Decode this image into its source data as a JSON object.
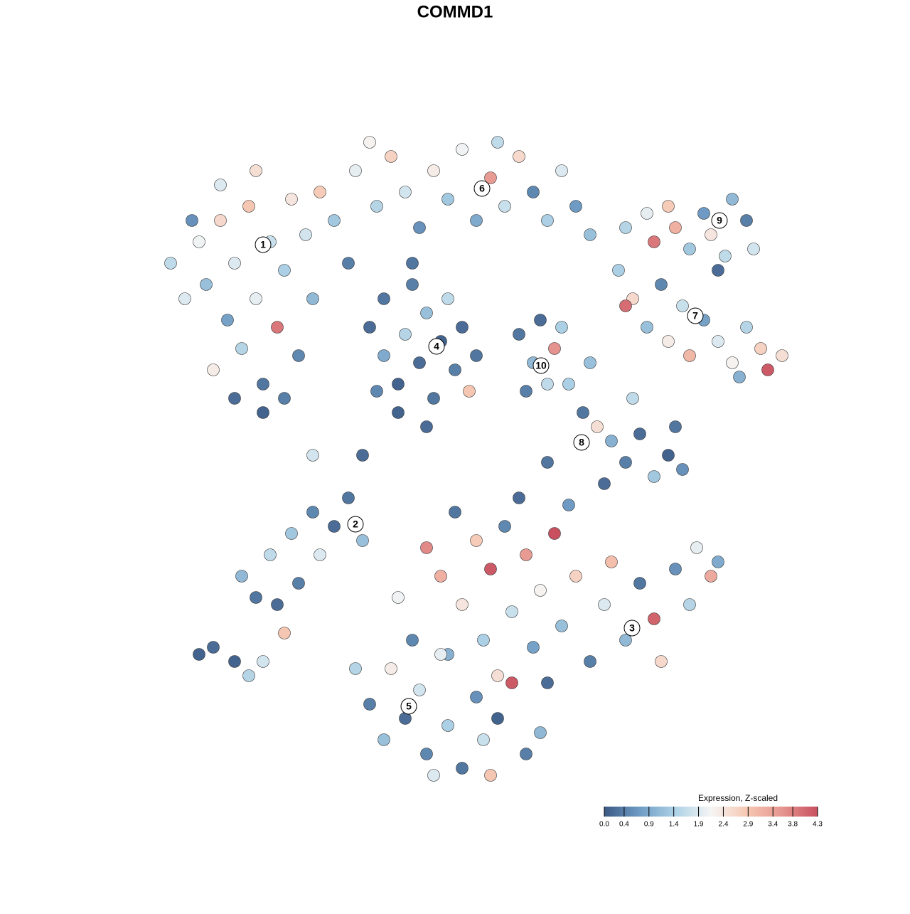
{
  "chart_data": {
    "type": "scatter",
    "title": "COMMD1",
    "xlim": [
      -45,
      50
    ],
    "ylim": [
      -48,
      48
    ],
    "x": [
      -40,
      -38,
      -36,
      -35,
      -33,
      -32,
      -31,
      -30,
      -29,
      -28,
      -27,
      -26,
      -25,
      -24,
      -23,
      -22,
      -21,
      -20,
      -31,
      -27,
      -34,
      -24,
      -37,
      -19,
      -17,
      -15,
      -33,
      -28,
      -14,
      -11,
      -9,
      -7,
      -5,
      -3,
      -1,
      1,
      3,
      5,
      7,
      9,
      11,
      13,
      15,
      17,
      19,
      -12,
      6,
      -6,
      -12,
      -10,
      -10,
      -8,
      -7,
      -6,
      -5,
      -4,
      -3,
      -2,
      -1,
      0,
      1,
      2,
      -8,
      -11,
      3,
      -4,
      9,
      11,
      12,
      13,
      14,
      10,
      15,
      24,
      27,
      28,
      30,
      31,
      33,
      35,
      36,
      38,
      39,
      41,
      42,
      37,
      23,
      25,
      27,
      29,
      30,
      32,
      33,
      35,
      37,
      39,
      41,
      43,
      44,
      46,
      24,
      40,
      16,
      18,
      20,
      19,
      22,
      24,
      26,
      28,
      30,
      32,
      31,
      25,
      13,
      21,
      -30,
      -28,
      -26,
      -25,
      -23,
      -22,
      -20,
      -19,
      -17,
      -15,
      -13,
      -24,
      -34,
      -31,
      -27,
      -29,
      -4,
      -2,
      0,
      1,
      3,
      4,
      5,
      7,
      8,
      10,
      11,
      12,
      14,
      15,
      17,
      19,
      21,
      22,
      24,
      26,
      28,
      29,
      31,
      33,
      34,
      36,
      37,
      -8,
      -6,
      -1,
      6,
      9,
      16,
      13,
      -14,
      -12,
      -10,
      -9,
      -7,
      -5,
      -4,
      -2,
      -1,
      1,
      3,
      4,
      6,
      8,
      10,
      12,
      -3,
      5,
      -20,
      -13,
      -36
    ],
    "y": [
      27,
      22,
      30,
      24,
      33,
      19,
      27,
      15,
      35,
      22,
      10,
      30,
      18,
      26,
      36,
      14,
      31,
      22,
      8,
      6,
      12,
      8,
      33,
      37,
      33,
      27,
      38,
      40,
      40,
      35,
      42,
      37,
      32,
      40,
      36,
      43,
      33,
      39,
      35,
      42,
      37,
      33,
      40,
      35,
      31,
      44,
      44,
      27,
      18,
      14,
      22,
      10,
      17,
      24,
      13,
      20,
      8,
      16,
      22,
      12,
      18,
      9,
      6,
      9,
      14,
      4,
      17,
      13,
      19,
      10,
      15,
      9,
      18,
      32,
      34,
      30,
      35,
      32,
      29,
      34,
      31,
      28,
      36,
      33,
      29,
      26,
      26,
      22,
      18,
      24,
      16,
      21,
      14,
      19,
      16,
      13,
      18,
      15,
      12,
      14,
      21,
      11,
      10,
      6,
      4,
      13,
      2,
      -1,
      3,
      -3,
      0,
      -2,
      4,
      8,
      -1,
      -4,
      -17,
      -20,
      -14,
      -21,
      -11,
      -18,
      -8,
      -14,
      -10,
      -6,
      -12,
      -25,
      -27,
      -29,
      -29,
      -31,
      -13,
      -17,
      -8,
      -21,
      -12,
      -26,
      -16,
      -10,
      -22,
      -14,
      -27,
      -19,
      -11,
      -24,
      -17,
      -29,
      -21,
      -15,
      -26,
      -18,
      -23,
      -29,
      -16,
      -21,
      -13,
      -17,
      -15,
      -20,
      -26,
      -28,
      -31,
      -6,
      -7,
      -32,
      -30,
      -35,
      -40,
      -30,
      -37,
      -33,
      -42,
      -28,
      -38,
      -44,
      -34,
      -40,
      -37,
      -32,
      -42,
      -39,
      -45,
      -45,
      0,
      0,
      -28
    ],
    "values": [
      1.6,
      1.9,
      2.1,
      1.2,
      2.6,
      0.8,
      1.9,
      1.5,
      2.9,
      2.0,
      0.3,
      1.7,
      3.9,
      1.4,
      2.4,
      0.5,
      1.8,
      1.1,
      0.2,
      0.1,
      2.3,
      0.4,
      0.6,
      2.8,
      1.3,
      0.4,
      1.9,
      2.5,
      2.0,
      1.5,
      2.7,
      1.8,
      0.6,
      2.3,
      1.3,
      2.1,
      0.9,
      3.5,
      1.7,
      2.6,
      0.5,
      1.4,
      1.9,
      0.7,
      1.2,
      2.2,
      1.6,
      0.3,
      0.2,
      0.9,
      0.3,
      0.1,
      1.5,
      0.4,
      0.2,
      1.2,
      0.3,
      0.1,
      1.6,
      0.4,
      0.2,
      2.9,
      0.1,
      0.5,
      0.3,
      0.2,
      0.3,
      1.1,
      0.2,
      1.6,
      3.6,
      0.4,
      1.4,
      1.5,
      2.0,
      3.9,
      2.8,
      3.2,
      1.3,
      0.7,
      2.4,
      1.6,
      1.1,
      0.4,
      1.8,
      0.2,
      1.4,
      2.6,
      1.2,
      0.5,
      2.3,
      1.7,
      3.1,
      0.8,
      1.9,
      2.2,
      1.5,
      2.7,
      4.2,
      2.5,
      4.0,
      1.0,
      1.4,
      0.3,
      2.5,
      1.2,
      1.0,
      0.4,
      0.2,
      1.3,
      0.1,
      0.6,
      0.3,
      1.6,
      0.3,
      0.2,
      1.1,
      0.3,
      1.6,
      0.2,
      1.3,
      0.4,
      0.5,
      1.9,
      0.2,
      0.3,
      1.2,
      2.9,
      0.2,
      0.1,
      1.8,
      1.5,
      3.7,
      3.2,
      0.3,
      2.4,
      2.8,
      1.4,
      4.2,
      0.5,
      1.7,
      3.5,
      0.8,
      2.2,
      4.3,
      1.2,
      2.7,
      0.4,
      1.9,
      3.0,
      1.1,
      0.3,
      4.1,
      2.6,
      0.6,
      1.5,
      2.0,
      3.3,
      0.9,
      2.1,
      0.5,
      1.0,
      2.5,
      0.2,
      0.7,
      0.2,
      1.5,
      0.4,
      1.2,
      2.3,
      0.2,
      1.8,
      0.5,
      2.0,
      1.4,
      0.3,
      0.6,
      1.7,
      0.1,
      4.2,
      0.4,
      1.1,
      1.9,
      2.9,
      1.8,
      0.2,
      0.1
    ],
    "annotations": [
      {
        "label": "1",
        "x": -27,
        "y": 29.6
      },
      {
        "label": "2",
        "x": -14,
        "y": -9.7
      },
      {
        "label": "3",
        "x": 24.9,
        "y": -24.3
      },
      {
        "label": "4",
        "x": -2.6,
        "y": 15.3
      },
      {
        "label": "5",
        "x": -6.5,
        "y": -35.3
      },
      {
        "label": "6",
        "x": 3.8,
        "y": 37.5
      },
      {
        "label": "7",
        "x": 33.8,
        "y": 19.6
      },
      {
        "label": "8",
        "x": 17.8,
        "y": 1.8
      },
      {
        "label": "9",
        "x": 37.2,
        "y": 33
      },
      {
        "label": "10",
        "x": 12.1,
        "y": 12.6
      }
    ],
    "colorbar": {
      "title": "Expression, Z-scaled",
      "colors": [
        "#3b5a85",
        "#6f9cc4",
        "#aed2e6",
        "#f5f5f5",
        "#f6c8b3",
        "#e6958f",
        "#c8505f"
      ],
      "ticks": [
        {
          "value": 0,
          "label": "0.0"
        },
        0.4,
        0.9,
        1.4,
        1.9,
        2.4,
        2.9,
        3.4,
        3.8,
        4.3
      ]
    }
  }
}
